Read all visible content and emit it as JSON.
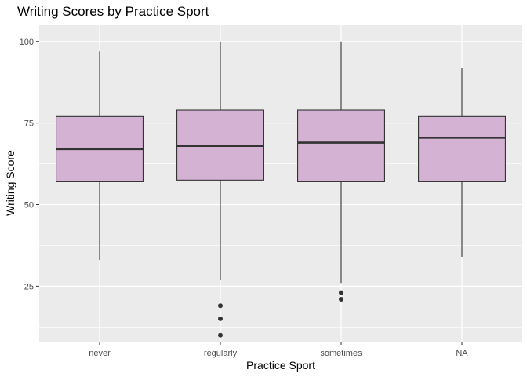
{
  "chart_data": {
    "type": "boxplot",
    "title": "Writing Scores by Practice Sport",
    "xlabel": "Practice Sport",
    "ylabel": "Writing Score",
    "ylim": [
      8,
      105
    ],
    "yticks": [
      25,
      50,
      75,
      100
    ],
    "grid": true,
    "categories": [
      "never",
      "regularly",
      "sometimes",
      "NA"
    ],
    "boxes": [
      {
        "category": "never",
        "whisker_low": 33,
        "q1": 57,
        "median": 67,
        "q3": 77,
        "whisker_high": 97,
        "outliers": []
      },
      {
        "category": "regularly",
        "whisker_low": 27,
        "q1": 57.5,
        "median": 68,
        "q3": 79,
        "whisker_high": 100,
        "outliers": [
          19,
          15,
          10
        ]
      },
      {
        "category": "sometimes",
        "whisker_low": 26,
        "q1": 57,
        "median": 69,
        "q3": 79,
        "whisker_high": 100,
        "outliers": [
          23,
          21
        ]
      },
      {
        "category": "NA",
        "whisker_low": 34,
        "q1": 57,
        "median": 70.5,
        "q3": 77,
        "whisker_high": 92,
        "outliers": []
      }
    ],
    "colors": {
      "panel": "#ebebeb",
      "grid_major": "#ffffff",
      "box_fill": "#d4b2d3",
      "box_line": "#333333"
    }
  }
}
